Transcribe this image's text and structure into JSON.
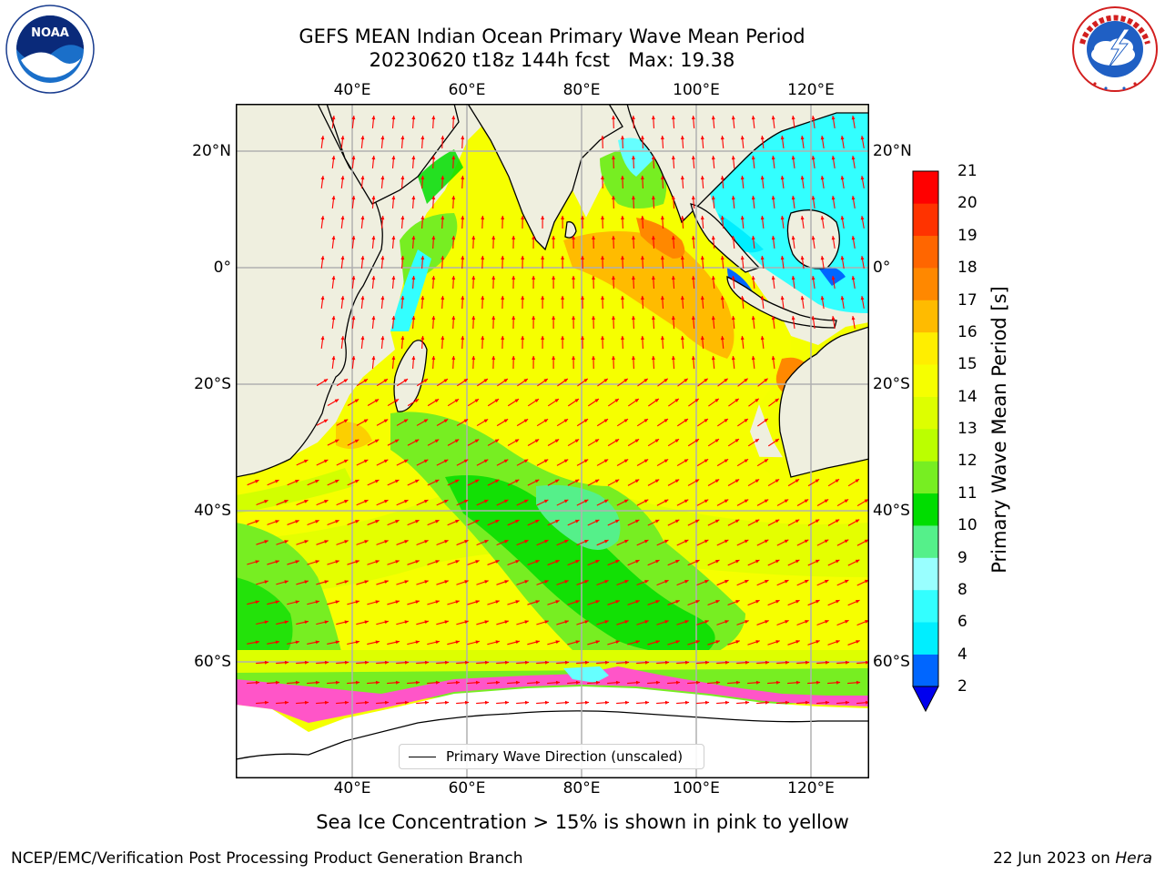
{
  "header": {
    "title_line1": "GEFS MEAN Indian Ocean Primary Wave Mean Period",
    "title_line2": "20230620 t18z 144h fcst   Max: 19.38"
  },
  "logos": {
    "left": {
      "text": "NOAA",
      "ring_text": "NATIONAL OCEANIC AND ATMOSPHERIC ADMINISTRATION · U.S. DEPARTMENT OF COMMERCE"
    },
    "right": {
      "ring_text": "NATIONAL WEATHER SERVICE"
    }
  },
  "map": {
    "lon_ticks_top": [
      "40°E",
      "60°E",
      "80°E",
      "100°E",
      "120°E"
    ],
    "lon_ticks_bottom": [
      "40°E",
      "60°E",
      "80°E",
      "100°E",
      "120°E"
    ],
    "lat_ticks_left": [
      "20°N",
      "0°",
      "20°S",
      "40°S",
      "60°S"
    ],
    "lat_ticks_right": [
      "20°N",
      "0°",
      "20°S",
      "40°S",
      "60°S"
    ],
    "lon_values": [
      40,
      60,
      80,
      100,
      120
    ],
    "lat_values": [
      20,
      0,
      -20,
      -40,
      -60
    ],
    "lon_range": [
      20,
      130
    ],
    "lat_range": [
      -75,
      26
    ],
    "grid": true,
    "vector_color": "#ff0000",
    "land_color": "#efefdf",
    "ice_color": "#ff55c8"
  },
  "legend": {
    "label": "Primary Wave Direction (unscaled)",
    "position": "bottom-center"
  },
  "colorbar": {
    "label": "Primary Wave Mean Period [s]",
    "tick_labels": [
      "21",
      "20",
      "19",
      "18",
      "17",
      "16",
      "15",
      "14",
      "13",
      "12",
      "11",
      "10",
      "9",
      "8",
      "6",
      "4",
      "2"
    ],
    "levels": [
      2,
      4,
      6,
      8,
      9,
      10,
      11,
      12,
      13,
      14,
      15,
      16,
      17,
      18,
      19,
      20,
      21
    ],
    "colors": [
      "#0066ff",
      "#00eeff",
      "#33ffff",
      "#99ffff",
      "#55f08a",
      "#00dd00",
      "#77ee22",
      "#bbff00",
      "#ddff00",
      "#f6ff00",
      "#ffee00",
      "#ffbb00",
      "#ff8800",
      "#ff6600",
      "#ff3300",
      "#ff0000"
    ],
    "extend_min_color": "#0000ee"
  },
  "caption": "Sea Ice Concentration > 15% is shown in pink to yellow",
  "footer": {
    "left": "NCEP/EMC/Verification Post Processing Product Generation Branch",
    "right_date": "22 Jun 2023 on ",
    "right_machine": "Hera"
  }
}
